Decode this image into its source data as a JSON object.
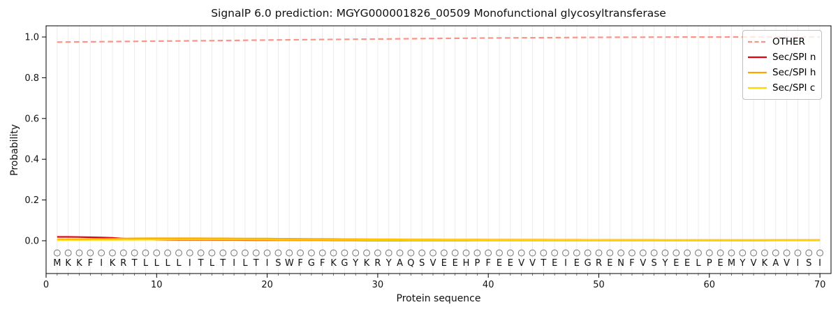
{
  "title": "SignalP 6.0 prediction: MGYG000001826_00509 Monofunctional glycosyltransferase",
  "axes": {
    "xlabel": "Protein sequence",
    "ylabel": "Probability",
    "x_ticks": [
      0,
      10,
      20,
      30,
      40,
      50,
      60,
      70
    ],
    "y_ticks": [
      "0.0",
      "0.2",
      "0.4",
      "0.6",
      "0.8",
      "1.0"
    ]
  },
  "legend": {
    "position": "upper right",
    "entries": [
      {
        "label": "OTHER",
        "color": "#fa8072",
        "dash": true
      },
      {
        "label": "Sec/SPI n",
        "color": "#e8000b",
        "dash": false
      },
      {
        "label": "Sec/SPI h",
        "color": "#ffa500",
        "dash": false
      },
      {
        "label": "Sec/SPI c",
        "color": "#ffd700",
        "dash": false
      }
    ]
  },
  "chart_data": {
    "type": "line",
    "title": "SignalP 6.0 prediction: MGYG000001826_00509 Monofunctional glycosyltransferase",
    "xlabel": "Protein sequence",
    "ylabel": "Probability",
    "xlim": [
      0,
      71
    ],
    "ylim": [
      -0.16,
      1.055
    ],
    "grid": "vertical gridline at every residue position",
    "legend_position": "upper right",
    "marker_glyph": "O",
    "sequence": "MKKFIKRTLLLLITLTILTISWFGFKGYKRYAQSVEEHPFEEVVTEIEGRENFVSYEELPEMYVKAVISI",
    "x_positions": "1..70",
    "series": [
      {
        "name": "OTHER",
        "style": "dashed",
        "color": "#fa8072",
        "values": [
          0.975,
          0.9755,
          0.976,
          0.9765,
          0.977,
          0.9775,
          0.978,
          0.9785,
          0.979,
          0.9795,
          0.98,
          0.9805,
          0.981,
          0.9815,
          0.982,
          0.9825,
          0.983,
          0.984,
          0.9845,
          0.985,
          0.9855,
          0.986,
          0.9865,
          0.987,
          0.9875,
          0.988,
          0.9885,
          0.989,
          0.9895,
          0.99,
          0.9905,
          0.991,
          0.9915,
          0.992,
          0.9925,
          0.993,
          0.9935,
          0.994,
          0.9945,
          0.995,
          0.9952,
          0.9955,
          0.996,
          0.9963,
          0.9966,
          0.997,
          0.9973,
          0.9976,
          0.998,
          0.9982,
          0.9985,
          0.9987,
          0.9989,
          0.999,
          0.9992,
          0.9993,
          0.9995,
          0.9996,
          0.9997,
          0.9998,
          0.9998,
          0.9999,
          0.9999,
          1.0,
          1.0,
          1.0,
          1.0,
          1.0,
          1.0,
          1.0
        ]
      },
      {
        "name": "Sec/SPI n",
        "style": "solid",
        "color": "#e8000b",
        "values": [
          0.019,
          0.019,
          0.018,
          0.017,
          0.016,
          0.014,
          0.011,
          0.008,
          0.006,
          0.005,
          0.0045,
          0.004,
          0.004,
          0.004,
          0.004,
          0.0038,
          0.0036,
          0.0034,
          0.0032,
          0.003,
          0.003,
          0.0029,
          0.0028,
          0.0027,
          0.0026,
          0.0025,
          0.0024,
          0.0023,
          0.0022,
          0.0021,
          0.002,
          0.002,
          0.002,
          0.002,
          0.002,
          0.002,
          0.002,
          0.002,
          0.002,
          0.002,
          0.002,
          0.002,
          0.002,
          0.002,
          0.002,
          0.002,
          0.002,
          0.002,
          0.002,
          0.002,
          0.002,
          0.002,
          0.002,
          0.002,
          0.002,
          0.002,
          0.002,
          0.002,
          0.002,
          0.002,
          0.002,
          0.002,
          0.002,
          0.002,
          0.002,
          0.002,
          0.002,
          0.002,
          0.002,
          0.002
        ]
      },
      {
        "name": "Sec/SPI h",
        "style": "solid",
        "color": "#ffa500",
        "values": [
          0.006,
          0.0065,
          0.007,
          0.008,
          0.009,
          0.01,
          0.011,
          0.0115,
          0.012,
          0.012,
          0.012,
          0.012,
          0.012,
          0.012,
          0.0118,
          0.0115,
          0.0112,
          0.011,
          0.0108,
          0.0105,
          0.01,
          0.0098,
          0.0095,
          0.009,
          0.0088,
          0.0085,
          0.008,
          0.0078,
          0.0075,
          0.007,
          0.0068,
          0.0065,
          0.0063,
          0.006,
          0.006,
          0.0058,
          0.0056,
          0.0055,
          0.0054,
          0.0053,
          0.0052,
          0.0051,
          0.005,
          0.005,
          0.005,
          0.0049,
          0.0048,
          0.0047,
          0.0046,
          0.0045,
          0.0045,
          0.0044,
          0.0044,
          0.0043,
          0.0043,
          0.0042,
          0.0042,
          0.0041,
          0.0041,
          0.004,
          0.004,
          0.004,
          0.004,
          0.004,
          0.004,
          0.004,
          0.004,
          0.004,
          0.004,
          0.004
        ]
      },
      {
        "name": "Sec/SPI c",
        "style": "solid",
        "color": "#ffd700",
        "values": [
          0.004,
          0.004,
          0.0042,
          0.0044,
          0.0046,
          0.0048,
          0.005,
          0.0052,
          0.0055,
          0.0056,
          0.0057,
          0.0058,
          0.0058,
          0.0058,
          0.0057,
          0.0056,
          0.0055,
          0.0054,
          0.0052,
          0.005,
          0.0048,
          0.0046,
          0.0045,
          0.0044,
          0.0043,
          0.0042,
          0.0041,
          0.004,
          0.0039,
          0.0038,
          0.0037,
          0.0036,
          0.0035,
          0.0035,
          0.0034,
          0.0034,
          0.0033,
          0.0033,
          0.0032,
          0.0032,
          0.0031,
          0.0031,
          0.003,
          0.003,
          0.003,
          0.003,
          0.003,
          0.003,
          0.003,
          0.003,
          0.0029,
          0.0029,
          0.0029,
          0.0028,
          0.0028,
          0.0028,
          0.0028,
          0.0027,
          0.0027,
          0.0027,
          0.0027,
          0.0026,
          0.0026,
          0.0026,
          0.0026,
          0.0025,
          0.0025,
          0.0025,
          0.0025,
          0.0025
        ]
      }
    ]
  }
}
